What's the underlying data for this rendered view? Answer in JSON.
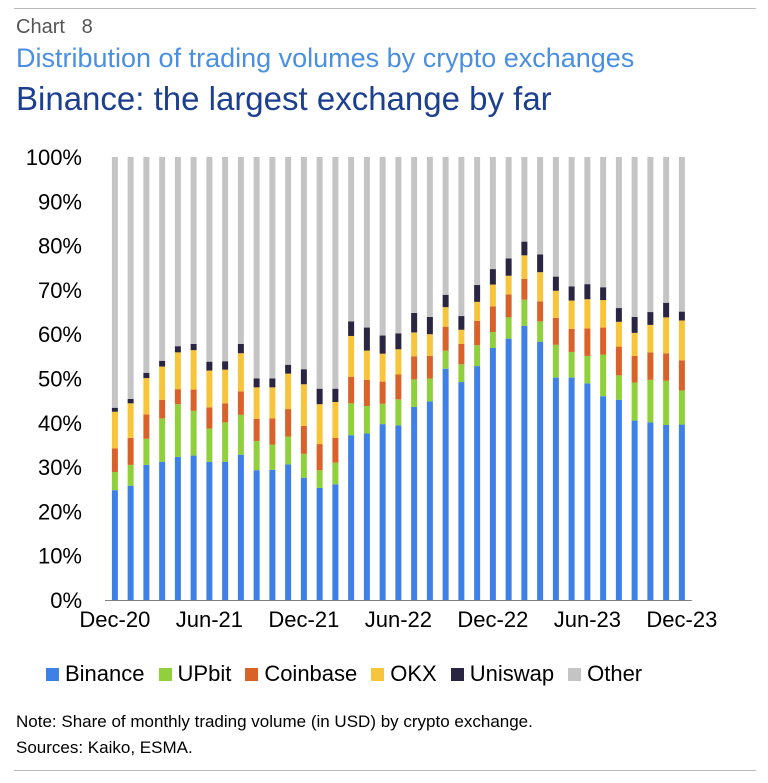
{
  "header": {
    "chart_label": "Chart   8",
    "subtitle": "Distribution of trading volumes by crypto exchanges",
    "title": "Binance: the largest exchange by far"
  },
  "notes": {
    "note": "Note: Share of monthly trading volume (in USD) by crypto exchange.",
    "sources": "Sources: Kaiko, ESMA."
  },
  "chart_data": {
    "type": "bar",
    "stacked": true,
    "y_unit": "%",
    "ylim": [
      0,
      100
    ],
    "y_ticks": [
      0,
      10,
      20,
      30,
      40,
      50,
      60,
      70,
      80,
      90,
      100
    ],
    "y_tick_labels": [
      "0%",
      "10%",
      "20%",
      "30%",
      "40%",
      "50%",
      "60%",
      "70%",
      "80%",
      "90%",
      "100%"
    ],
    "x_tick_labels": [
      "Dec-20",
      "Jun-21",
      "Dec-21",
      "Jun-22",
      "Dec-22",
      "Jun-23",
      "Dec-23"
    ],
    "x_tick_every": 6,
    "grid": false,
    "legend_position": "bottom",
    "categories": [
      "Dec-20",
      "Jan-21",
      "Feb-21",
      "Mar-21",
      "Apr-21",
      "May-21",
      "Jun-21",
      "Jul-21",
      "Aug-21",
      "Sep-21",
      "Oct-21",
      "Nov-21",
      "Dec-21",
      "Jan-22",
      "Feb-22",
      "Mar-22",
      "Apr-22",
      "May-22",
      "Jun-22",
      "Jul-22",
      "Aug-22",
      "Sep-22",
      "Oct-22",
      "Nov-22",
      "Dec-22",
      "Jan-23",
      "Feb-23",
      "Mar-23",
      "Apr-23",
      "May-23",
      "Jun-23",
      "Jul-23",
      "Aug-23",
      "Sep-23",
      "Oct-23",
      "Nov-23",
      "Dec-23"
    ],
    "series": [
      {
        "name": "Binance",
        "color": "#3f80e6",
        "values": [
          24.8,
          25.8,
          30.5,
          31.2,
          32.3,
          32.6,
          31.2,
          31.2,
          32.8,
          29.3,
          29.4,
          30.6,
          27.6,
          25.3,
          26.1,
          37.2,
          37.6,
          39.7,
          39.4,
          43.6,
          44.8,
          52.2,
          49.2,
          52.8,
          56.9,
          59.0,
          61.9,
          58.3,
          50.2,
          50.2,
          48.9,
          46.0,
          45.2,
          40.5,
          40.1,
          39.5,
          39.6
        ]
      },
      {
        "name": "UPbit",
        "color": "#8fd03c",
        "values": [
          4.1,
          4.7,
          5.9,
          9.8,
          11.9,
          10.1,
          7.5,
          8.9,
          9.0,
          6.6,
          5.7,
          6.3,
          5.4,
          4.0,
          4.9,
          7.2,
          6.2,
          4.6,
          5.9,
          6.2,
          5.2,
          4.1,
          4.0,
          4.7,
          3.6,
          4.8,
          5.9,
          4.6,
          7.4,
          5.8,
          6.2,
          9.4,
          5.5,
          8.6,
          9.6,
          10.0,
          7.7
        ]
      },
      {
        "name": "Coinbase",
        "color": "#d9622b",
        "values": [
          5.3,
          6.1,
          5.5,
          4.2,
          3.4,
          4.8,
          4.8,
          4.3,
          5.3,
          5.0,
          5.9,
          6.2,
          6.3,
          5.9,
          5.6,
          6.0,
          5.9,
          5.0,
          5.6,
          5.2,
          5.1,
          5.4,
          4.6,
          5.5,
          5.8,
          5.2,
          4.7,
          4.5,
          6.1,
          5.2,
          6.2,
          6.1,
          6.5,
          6.0,
          6.2,
          6.2,
          6.8
        ]
      },
      {
        "name": "OKX",
        "color": "#f7c53c",
        "values": [
          8.3,
          7.8,
          8.2,
          7.5,
          8.3,
          8.9,
          8.3,
          7.6,
          8.6,
          7.1,
          7.0,
          8.0,
          9.4,
          9.0,
          8.1,
          9.2,
          6.6,
          6.3,
          5.7,
          5.4,
          4.9,
          4.4,
          3.2,
          4.3,
          4.9,
          4.2,
          5.3,
          6.6,
          6.1,
          6.4,
          6.6,
          6.2,
          5.6,
          5.2,
          6.2,
          8.1,
          9.0
        ]
      },
      {
        "name": "Uniswap",
        "color": "#2a2642",
        "values": [
          0.9,
          1.0,
          1.2,
          1.3,
          1.4,
          1.4,
          2.0,
          1.9,
          2.1,
          2.0,
          2.0,
          2.0,
          3.4,
          3.5,
          3.0,
          3.3,
          5.2,
          4.1,
          3.6,
          4.4,
          3.9,
          2.8,
          3.1,
          3.8,
          3.5,
          3.9,
          3.1,
          4.0,
          3.2,
          3.2,
          3.4,
          2.9,
          3.1,
          3.6,
          2.9,
          3.3,
          2.0
        ]
      },
      {
        "name": "Other",
        "color": "#c4c4c4",
        "values": [
          56.6,
          54.6,
          48.7,
          46.0,
          42.7,
          42.2,
          46.2,
          46.1,
          42.2,
          50.0,
          50.0,
          46.9,
          47.9,
          52.3,
          52.3,
          37.1,
          38.5,
          40.3,
          39.8,
          35.2,
          36.1,
          31.1,
          35.9,
          28.9,
          25.3,
          22.9,
          19.1,
          22.0,
          27.0,
          29.2,
          28.7,
          29.4,
          34.1,
          36.1,
          35.0,
          32.9,
          34.9
        ]
      }
    ]
  }
}
